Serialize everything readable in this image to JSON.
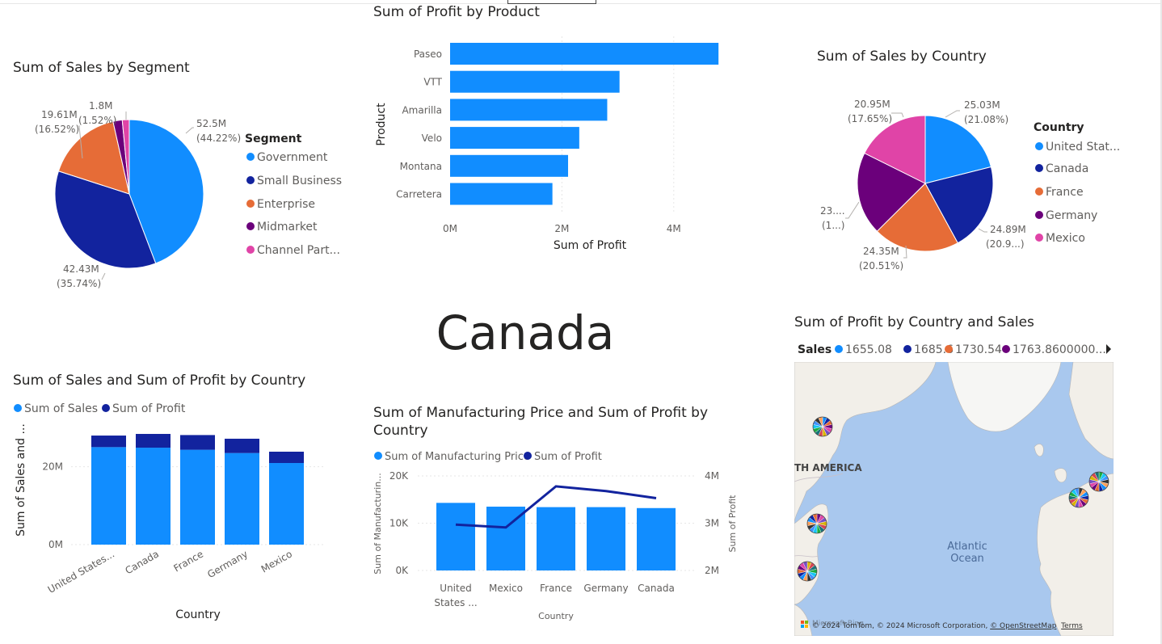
{
  "report": {
    "selected_country_card": "Canada"
  },
  "segment_pie": {
    "title": "Sum of Sales by Segment",
    "legend_title": "Segment",
    "legend": [
      "Government",
      "Small Business",
      "Enterprise",
      "Midmarket",
      "Channel Part..."
    ],
    "labels": [
      {
        "value": "52.5M",
        "pct": "(44.22%)"
      },
      {
        "value": "42.43M",
        "pct": "(35.74%)"
      },
      {
        "value": "19.61M",
        "pct": "(16.52%)"
      },
      {
        "value": "1.8M",
        "pct": "(1.52%)"
      }
    ]
  },
  "product_bar": {
    "title": "Sum of Profit by Product",
    "ylabel": "Product",
    "xlabel": "Sum of Profit",
    "ticks": [
      "0M",
      "2M",
      "4M"
    ]
  },
  "country_pie": {
    "title": "Sum of Sales by Country",
    "legend_title": "Country",
    "legend": [
      "United Stat...",
      "Canada",
      "France",
      "Germany",
      "Mexico"
    ],
    "labels": [
      {
        "value": "25.03M",
        "pct": "(21.08%)"
      },
      {
        "value": "24.89M",
        "pct": "(20.9...)"
      },
      {
        "value": "24.35M",
        "pct": "(20.51%)"
      },
      {
        "value": "23....",
        "pct": "(1...)"
      },
      {
        "value": "20.95M",
        "pct": "(17.65%)"
      }
    ]
  },
  "sales_profit_bar": {
    "title": "Sum of Sales and Sum of Profit by Country",
    "legend": [
      "Sum of  Sales",
      "Sum of Profit"
    ],
    "ylabel": "Sum of Sales and ...",
    "xlabel": "Country",
    "yticks": [
      "20M",
      "0M"
    ],
    "categories_display": [
      "United States...",
      "Canada",
      "France",
      "Germany",
      "Mexico"
    ]
  },
  "mfg_combo": {
    "title": "Sum of Manufacturing Price and Sum of Profit by Country",
    "legend": [
      "Sum of Manufacturing Price",
      "Sum of Profit"
    ],
    "ylabel_left": "Sum of Manufacturin...",
    "ylabel_right": "Sum of Profit",
    "xlabel": "Country",
    "yticks_left": [
      "20K",
      "10K",
      "0K"
    ],
    "yticks_right": [
      "4M",
      "3M",
      "2M"
    ],
    "categories_display": [
      [
        "United",
        "States ..."
      ],
      [
        "Mexico"
      ],
      [
        "France"
      ],
      [
        "Germany"
      ],
      [
        "Canada"
      ]
    ]
  },
  "map": {
    "title": "Sum of Profit by Country and Sales",
    "legend_title": "Sales",
    "legend": [
      "1655.08",
      "1685.6",
      "1730.54",
      "1763.8600000..."
    ],
    "labels": {
      "continent": "TH AMERICA",
      "ocean_1": "Atlantic",
      "ocean_2": "Ocean"
    },
    "credit": "© 2024 TomTom, © 2024 Microsoft Corporation,",
    "credit_link1": "© OpenStreetMap",
    "credit_link2": "Terms",
    "ms_label": "Microsoft Bing"
  },
  "colors": {
    "blue": "#118DFF",
    "navy": "#12239E",
    "orange": "#E66C37",
    "purple": "#6B007B",
    "pink": "#E044A7",
    "grid": "#e6e6e6"
  },
  "chart_data": [
    {
      "type": "pie",
      "title": "Sum of Sales by Segment",
      "categories": [
        "Government",
        "Small Business",
        "Enterprise",
        "Midmarket",
        "Channel Partners"
      ],
      "values": [
        52.5,
        42.43,
        19.61,
        2.38,
        1.8
      ],
      "unit": "M"
    },
    {
      "type": "bar",
      "orientation": "horizontal",
      "title": "Sum of Profit by Product",
      "categories": [
        "Paseo",
        "VTT",
        "Amarilla",
        "Velo",
        "Montana",
        "Carretera"
      ],
      "values": [
        4.8,
        3.03,
        2.81,
        2.31,
        2.11,
        1.83
      ],
      "unit": "M",
      "xlim": [
        0,
        5
      ]
    },
    {
      "type": "pie",
      "title": "Sum of Sales by Country",
      "categories": [
        "United States of America",
        "Canada",
        "France",
        "Germany",
        "Mexico"
      ],
      "values": [
        25.03,
        24.89,
        24.35,
        23.51,
        20.95
      ],
      "unit": "M"
    },
    {
      "type": "bar",
      "stacked": true,
      "title": "Sum of Sales and Sum of Profit by Country",
      "categories": [
        "United States of America",
        "Canada",
        "France",
        "Germany",
        "Mexico"
      ],
      "series": [
        {
          "name": "Sum of  Sales",
          "values": [
            25.03,
            24.89,
            24.35,
            23.51,
            20.95
          ]
        },
        {
          "name": "Sum of Profit",
          "values": [
            2.97,
            3.53,
            3.78,
            3.68,
            2.91
          ]
        }
      ],
      "unit": "M",
      "ylim": [
        0,
        30
      ]
    },
    {
      "type": "bar",
      "combo": "line",
      "title": "Sum of Manufacturing Price and Sum of Profit by Country",
      "categories": [
        "United States of America",
        "Mexico",
        "France",
        "Germany",
        "Canada"
      ],
      "series": [
        {
          "name": "Sum of Manufacturing Price",
          "axis": "left",
          "unit": "K",
          "values": [
            14.3,
            13.5,
            13.4,
            13.4,
            13.2
          ]
        },
        {
          "name": "Sum of Profit",
          "axis": "right",
          "unit": "M",
          "values": [
            2.97,
            2.91,
            3.78,
            3.68,
            3.53
          ]
        }
      ],
      "ylim_left": [
        0,
        20
      ],
      "ylim_right": [
        2,
        4
      ]
    }
  ]
}
